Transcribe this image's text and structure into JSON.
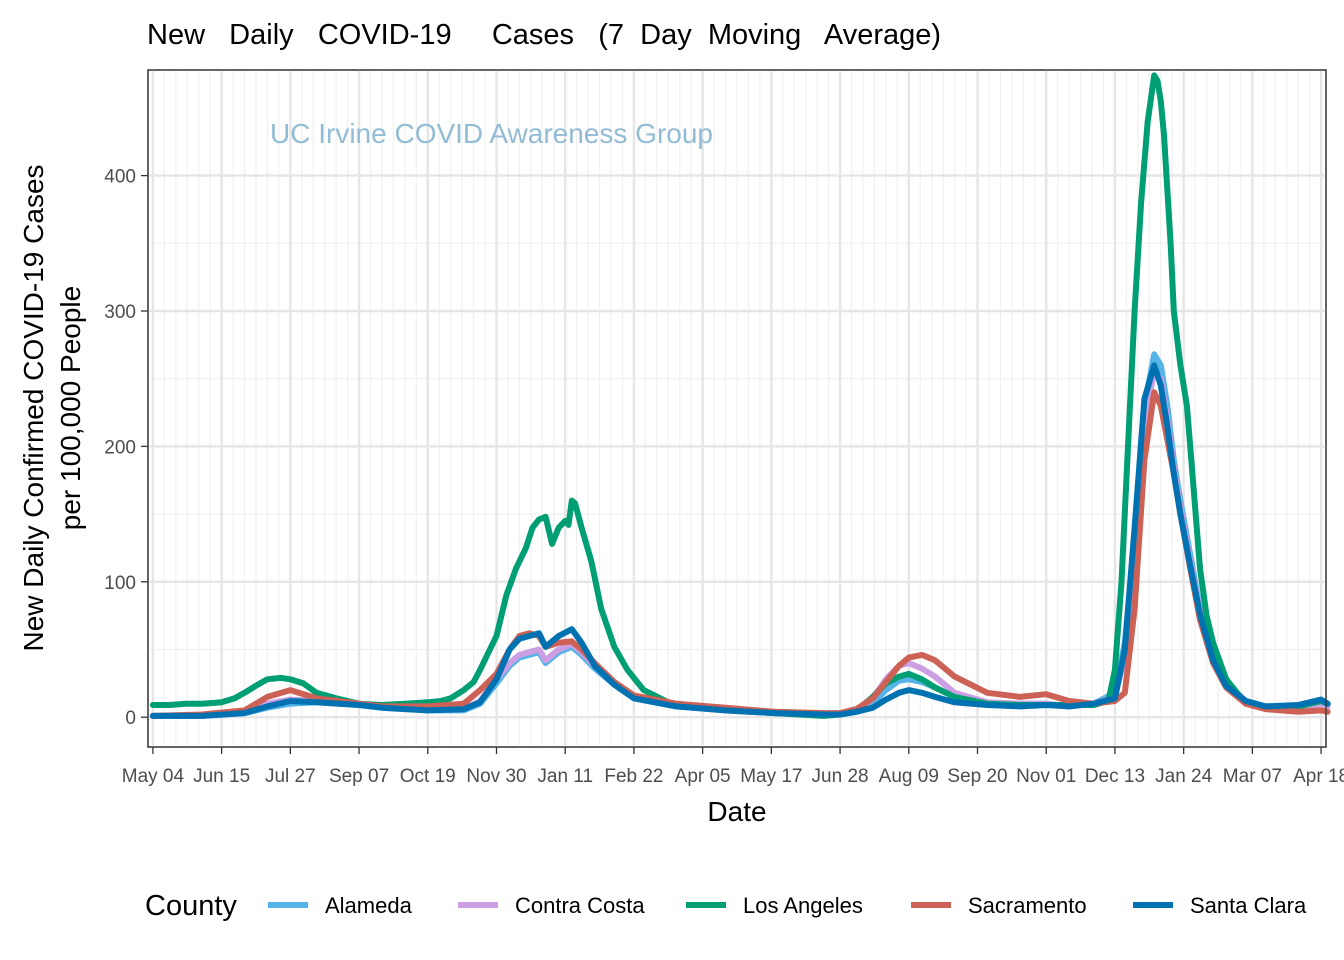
{
  "chart_data": {
    "type": "line",
    "title": "New   Daily   COVID-19     Cases   (7  Day  Moving   Average)",
    "watermark": "UC Irvine COVID Awareness Group",
    "xlabel": "Date",
    "ylabel_lines": [
      "New Daily Confirmed COVID-19 Cases",
      "per 100,000 People"
    ],
    "ylim": [
      -22,
      478
    ],
    "yticks": [
      0,
      100,
      200,
      300,
      400
    ],
    "xlim": [
      -3,
      717
    ],
    "xtick_labels": [
      "May 04",
      "Jun 15",
      "Jul 27",
      "Sep 07",
      "Oct 19",
      "Nov 30",
      "Jan 11",
      "Feb 22",
      "Apr 05",
      "May 17",
      "Jun 28",
      "Aug 09",
      "Sep 20",
      "Nov 01",
      "Dec 13",
      "Jan 24",
      "Mar 07",
      "Apr 18"
    ],
    "xtick_days": [
      0,
      42,
      84,
      126,
      168,
      210,
      252,
      294,
      336,
      378,
      420,
      462,
      504,
      546,
      588,
      630,
      672,
      714
    ],
    "x_unit": "days since May 04",
    "grid": true,
    "legend": {
      "title": "County",
      "position": "bottom"
    },
    "series": [
      {
        "name": "Alameda",
        "color": "#56b4e9",
        "x": [
          0,
          30,
          56,
          70,
          84,
          100,
          126,
          140,
          168,
          190,
          200,
          210,
          218,
          224,
          230,
          236,
          240,
          248,
          256,
          262,
          270,
          282,
          294,
          320,
          350,
          380,
          410,
          420,
          430,
          440,
          448,
          456,
          462,
          470,
          478,
          490,
          510,
          530,
          546,
          560,
          575,
          588,
          594,
          600,
          606,
          612,
          616,
          620,
          624,
          628,
          634,
          640,
          648,
          656,
          668,
          680,
          700,
          714,
          718
        ],
        "y": [
          1,
          1,
          3,
          7,
          10,
          11,
          9,
          7,
          5,
          5,
          10,
          25,
          38,
          44,
          46,
          48,
          40,
          48,
          52,
          46,
          36,
          24,
          14,
          8,
          5,
          3,
          2,
          2,
          4,
          10,
          20,
          27,
          28,
          26,
          22,
          15,
          10,
          10,
          10,
          8,
          10,
          18,
          55,
          130,
          230,
          268,
          260,
          230,
          190,
          160,
          120,
          80,
          45,
          25,
          12,
          8,
          8,
          12,
          9
        ]
      },
      {
        "name": "Contra Costa",
        "color": "#cc9ee3",
        "x": [
          0,
          30,
          56,
          70,
          84,
          100,
          126,
          140,
          168,
          190,
          200,
          210,
          218,
          224,
          230,
          236,
          240,
          248,
          256,
          262,
          270,
          282,
          294,
          320,
          350,
          380,
          410,
          420,
          430,
          440,
          448,
          456,
          462,
          470,
          478,
          490,
          510,
          530,
          546,
          560,
          575,
          588,
          594,
          600,
          606,
          612,
          616,
          620,
          624,
          628,
          634,
          640,
          648,
          656,
          668,
          680,
          700,
          714,
          718
        ],
        "y": [
          1,
          1,
          4,
          10,
          13,
          12,
          10,
          8,
          6,
          6,
          12,
          28,
          40,
          46,
          48,
          50,
          42,
          50,
          54,
          48,
          38,
          25,
          15,
          8,
          5,
          3,
          2,
          2,
          5,
          14,
          28,
          38,
          40,
          36,
          30,
          18,
          11,
          10,
          10,
          8,
          10,
          15,
          45,
          120,
          220,
          255,
          250,
          220,
          185,
          155,
          115,
          78,
          43,
          25,
          12,
          7,
          6,
          10,
          8
        ]
      },
      {
        "name": "Los Angeles",
        "color": "#009e73",
        "x": [
          0,
          10,
          20,
          30,
          42,
          50,
          56,
          64,
          70,
          78,
          84,
          92,
          100,
          112,
          126,
          140,
          154,
          168,
          176,
          182,
          190,
          196,
          200,
          206,
          210,
          216,
          222,
          228,
          232,
          236,
          240,
          244,
          248,
          252,
          254,
          256,
          258,
          262,
          268,
          274,
          282,
          290,
          300,
          320,
          350,
          380,
          410,
          420,
          430,
          440,
          448,
          456,
          462,
          470,
          478,
          490,
          510,
          530,
          546,
          560,
          575,
          584,
          588,
          592,
          596,
          600,
          604,
          608,
          612,
          614,
          616,
          618,
          620,
          622,
          624,
          628,
          632,
          636,
          640,
          644,
          648,
          656,
          668,
          680,
          700,
          714,
          718
        ],
        "y": [
          9,
          9,
          10,
          10,
          11,
          14,
          18,
          24,
          28,
          29,
          28,
          25,
          18,
          14,
          10,
          9,
          10,
          11,
          12,
          14,
          20,
          26,
          35,
          50,
          60,
          90,
          110,
          125,
          140,
          146,
          148,
          128,
          140,
          145,
          142,
          160,
          158,
          140,
          115,
          80,
          52,
          35,
          20,
          8,
          6,
          3,
          1,
          2,
          5,
          15,
          25,
          30,
          32,
          28,
          22,
          15,
          10,
          9,
          9,
          9,
          9,
          12,
          35,
          100,
          200,
          300,
          380,
          440,
          474,
          470,
          455,
          430,
          390,
          350,
          300,
          260,
          230,
          170,
          110,
          75,
          55,
          28,
          10,
          7,
          8,
          12,
          10
        ]
      },
      {
        "name": "Sacramento",
        "color": "#cd6155",
        "x": [
          0,
          30,
          56,
          70,
          84,
          100,
          126,
          140,
          168,
          190,
          200,
          210,
          218,
          224,
          230,
          236,
          240,
          248,
          256,
          262,
          270,
          282,
          294,
          320,
          350,
          380,
          410,
          420,
          430,
          440,
          448,
          456,
          462,
          470,
          478,
          490,
          510,
          530,
          546,
          560,
          575,
          588,
          594,
          600,
          606,
          612,
          616,
          620,
          624,
          628,
          634,
          640,
          648,
          656,
          668,
          680,
          700,
          714,
          718
        ],
        "y": [
          1,
          2,
          5,
          15,
          20,
          14,
          10,
          8,
          8,
          10,
          20,
          32,
          50,
          60,
          62,
          60,
          52,
          55,
          56,
          50,
          40,
          26,
          16,
          10,
          7,
          4,
          3,
          3,
          6,
          14,
          26,
          38,
          44,
          46,
          42,
          30,
          18,
          15,
          17,
          12,
          10,
          12,
          18,
          80,
          190,
          240,
          230,
          205,
          180,
          150,
          110,
          72,
          40,
          22,
          10,
          6,
          4,
          5,
          4
        ]
      },
      {
        "name": "Santa Clara",
        "color": "#0072b2",
        "x": [
          0,
          30,
          56,
          70,
          84,
          100,
          126,
          140,
          168,
          190,
          200,
          210,
          218,
          224,
          230,
          236,
          240,
          248,
          256,
          262,
          270,
          282,
          294,
          320,
          350,
          380,
          410,
          420,
          430,
          440,
          448,
          456,
          462,
          470,
          478,
          490,
          510,
          530,
          546,
          560,
          575,
          588,
          594,
          600,
          606,
          612,
          616,
          620,
          624,
          628,
          634,
          640,
          648,
          656,
          668,
          680,
          700,
          714,
          718
        ],
        "y": [
          1,
          1,
          3,
          8,
          12,
          11,
          9,
          7,
          5,
          6,
          11,
          28,
          50,
          58,
          60,
          62,
          52,
          60,
          65,
          55,
          38,
          24,
          14,
          8,
          5,
          3,
          2,
          2,
          4,
          7,
          13,
          18,
          20,
          18,
          15,
          11,
          9,
          8,
          9,
          8,
          10,
          14,
          50,
          140,
          235,
          260,
          245,
          215,
          180,
          150,
          112,
          76,
          42,
          23,
          12,
          8,
          9,
          13,
          10
        ]
      }
    ]
  }
}
